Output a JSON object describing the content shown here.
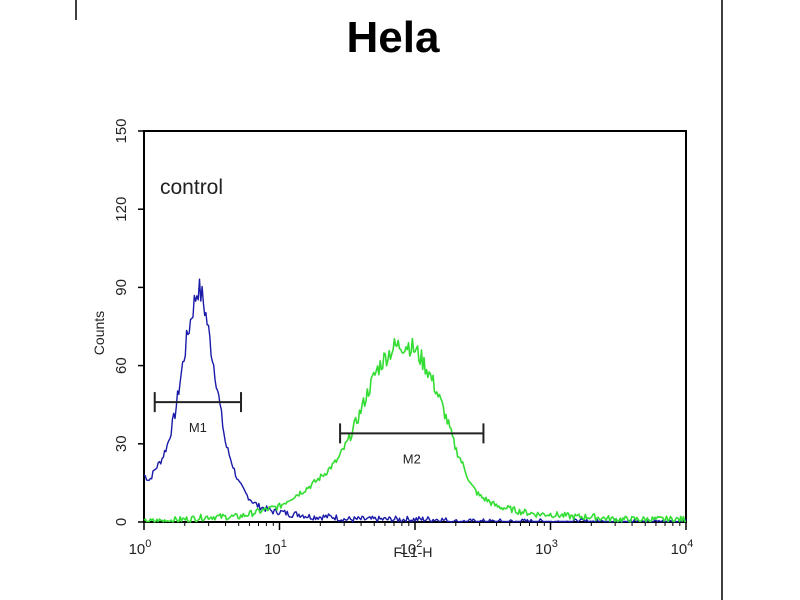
{
  "chart_data": {
    "type": "line",
    "title": "Hela",
    "xlabel": "FL1-H",
    "ylabel": "Counts",
    "x_scale": "log",
    "xlim": [
      1,
      10000
    ],
    "ylim": [
      0,
      150
    ],
    "x_ticks": [
      {
        "value": 1,
        "base": "10",
        "exp": "0"
      },
      {
        "value": 10,
        "base": "10",
        "exp": "1"
      },
      {
        "value": 100,
        "base": "10",
        "exp": "2"
      },
      {
        "value": 1000,
        "base": "10",
        "exp": "3"
      },
      {
        "value": 10000,
        "base": "10",
        "exp": "4"
      }
    ],
    "y_ticks": [
      "0",
      "30",
      "60",
      "90",
      "120",
      "150"
    ],
    "annotation": "control",
    "series": [
      {
        "color": "#1a1aa8",
        "x": [
          1.0,
          1.1,
          1.2,
          1.35,
          1.5,
          1.7,
          1.9,
          2.1,
          2.3,
          2.5,
          2.7,
          2.9,
          3.1,
          3.4,
          3.7,
          4.0,
          4.5,
          5.0,
          5.6,
          6.3,
          7.0,
          8.0,
          9.0,
          10,
          12,
          14,
          17,
          20,
          25,
          30,
          40,
          50,
          70,
          100,
          150,
          200,
          300,
          500,
          1000,
          2000,
          5000,
          10000
        ],
        "y": [
          18,
          16,
          20,
          24,
          30,
          42,
          58,
          72,
          82,
          90,
          86,
          78,
          68,
          55,
          42,
          30,
          22,
          15,
          11,
          8,
          6,
          5,
          4,
          4,
          3,
          3,
          2,
          2,
          2,
          1,
          1,
          1,
          1,
          1,
          1,
          0,
          0,
          0,
          0,
          0,
          0,
          0
        ]
      },
      {
        "color": "#33dd33",
        "x": [
          1.0,
          2.0,
          3.0,
          5.0,
          7.0,
          10,
          12,
          15,
          18,
          22,
          27,
          32,
          38,
          45,
          52,
          60,
          70,
          80,
          90,
          100,
          110,
          125,
          140,
          160,
          180,
          200,
          230,
          260,
          300,
          350,
          400,
          500,
          600,
          800,
          1000,
          1500,
          2000,
          3000,
          5000,
          10000
        ],
        "y": [
          0,
          1,
          2,
          2,
          4,
          6,
          9,
          12,
          15,
          19,
          24,
          31,
          40,
          50,
          58,
          63,
          67,
          68,
          68,
          66,
          63,
          58,
          52,
          44,
          36,
          28,
          21,
          14,
          10,
          8,
          6,
          5,
          4,
          3,
          3,
          2,
          2,
          1,
          1,
          1
        ]
      }
    ],
    "markers": [
      {
        "label": "M1",
        "x_start": 1.2,
        "x_end": 5.2,
        "y": 46
      },
      {
        "label": "M2",
        "x_start": 28,
        "x_end": 320,
        "y": 34
      }
    ]
  }
}
